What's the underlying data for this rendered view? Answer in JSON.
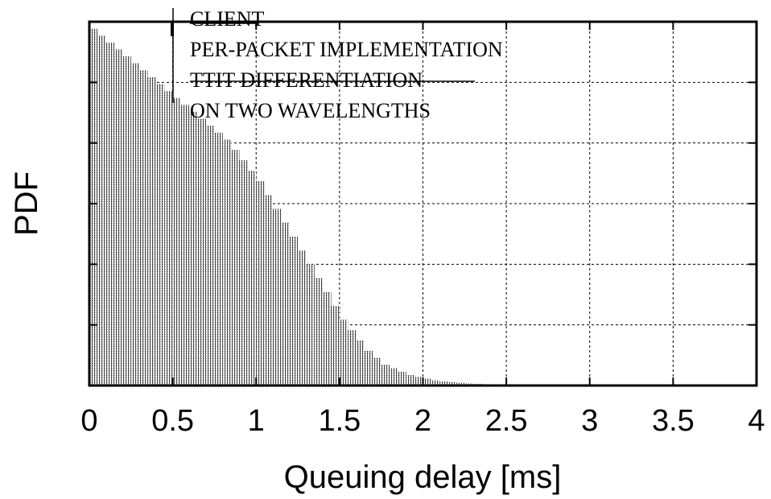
{
  "chart_data": {
    "type": "bar",
    "title": "",
    "xlabel": "Queuing delay [ms]",
    "ylabel": "PDF",
    "xlim": [
      0,
      4
    ],
    "ylim": [
      0,
      1.05
    ],
    "x_ticks": [
      "0",
      "0.5",
      "1",
      "1.5",
      "2",
      "2.5",
      "3",
      "3.5",
      "4"
    ],
    "y_ticks": [],
    "grid": true,
    "legend_position": "top-left",
    "legend": [
      "CLIENT",
      "PER-PACKET IMPLEMENTATION",
      "TTIT DIFFERENTIATION",
      "ON TWO WAVELENGTHS"
    ],
    "bin_width": 0.05,
    "x": [
      0.0,
      0.05,
      0.1,
      0.15,
      0.2,
      0.25,
      0.3,
      0.35,
      0.4,
      0.45,
      0.5,
      0.55,
      0.6,
      0.65,
      0.7,
      0.75,
      0.8,
      0.85,
      0.9,
      0.95,
      1.0,
      1.05,
      1.1,
      1.15,
      1.2,
      1.25,
      1.3,
      1.35,
      1.4,
      1.45,
      1.5,
      1.55,
      1.6,
      1.65,
      1.7,
      1.75,
      1.8,
      1.85,
      1.9,
      1.95,
      2.0,
      2.05,
      2.1,
      2.15,
      2.2,
      2.25,
      2.3,
      2.35,
      2.4,
      2.45
    ],
    "values": [
      1.03,
      1.01,
      0.99,
      0.97,
      0.95,
      0.93,
      0.91,
      0.89,
      0.87,
      0.85,
      0.83,
      0.81,
      0.79,
      0.77,
      0.75,
      0.73,
      0.71,
      0.68,
      0.65,
      0.62,
      0.59,
      0.55,
      0.51,
      0.47,
      0.43,
      0.39,
      0.35,
      0.31,
      0.27,
      0.23,
      0.19,
      0.16,
      0.13,
      0.1,
      0.08,
      0.06,
      0.05,
      0.04,
      0.03,
      0.025,
      0.02,
      0.015,
      0.012,
      0.01,
      0.008,
      0.006,
      0.005,
      0.004,
      0.003,
      0.002
    ]
  }
}
